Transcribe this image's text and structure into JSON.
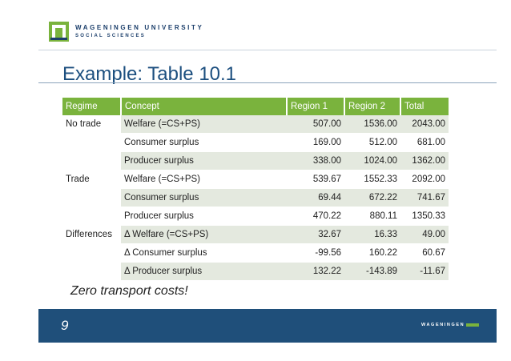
{
  "header": {
    "university_name": "WAGENINGEN UNIVERSITY",
    "department": "SOCIAL SCIENCES"
  },
  "title": "Example: Table 10.1",
  "table": {
    "headers": [
      "Regime",
      "Concept",
      "Region 1",
      "Region 2",
      "Total"
    ],
    "rows": [
      {
        "regime": "No trade",
        "concept": "Welfare (=CS+PS)",
        "r1": "507.00",
        "r2": "1536.00",
        "total": "2043.00"
      },
      {
        "regime": "",
        "concept": "Consumer surplus",
        "r1": "169.00",
        "r2": "512.00",
        "total": "681.00"
      },
      {
        "regime": "",
        "concept": "Producer surplus",
        "r1": "338.00",
        "r2": "1024.00",
        "total": "1362.00"
      },
      {
        "regime": "Trade",
        "concept": "Welfare (=CS+PS)",
        "r1": "539.67",
        "r2": "1552.33",
        "total": "2092.00"
      },
      {
        "regime": "",
        "concept": "Consumer surplus",
        "r1": "69.44",
        "r2": "672.22",
        "total": "741.67"
      },
      {
        "regime": "",
        "concept": "Producer surplus",
        "r1": "470.22",
        "r2": "880.11",
        "total": "1350.33"
      },
      {
        "regime": "Differences",
        "concept": "Δ  Welfare (=CS+PS)",
        "r1": "32.67",
        "r2": "16.33",
        "total": "49.00"
      },
      {
        "regime": "",
        "concept": "Δ  Consumer surplus",
        "r1": "-99.56",
        "r2": "160.22",
        "total": "60.67"
      },
      {
        "regime": "",
        "concept": "Δ  Producer surplus",
        "r1": "132.22",
        "r2": "-143.89",
        "total": "-11.67"
      }
    ]
  },
  "note": "Zero transport costs!",
  "footer": {
    "page_number": "9",
    "wordmark": "WAGENINGEN"
  },
  "colors": {
    "accent_green": "#7ab33d",
    "footer_blue": "#1f4f7a",
    "title_blue": "#1c4f7f"
  }
}
